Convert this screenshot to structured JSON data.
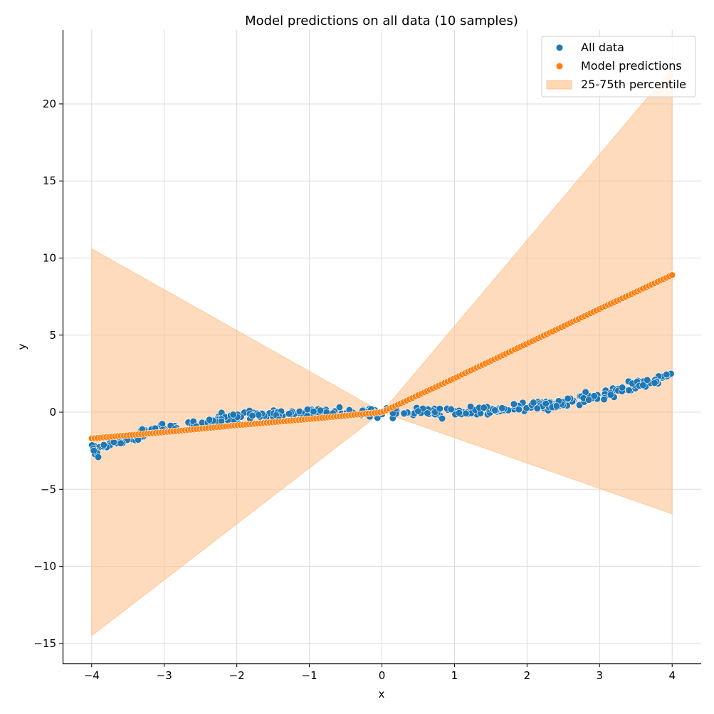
{
  "chart_data": {
    "type": "scatter",
    "title": "Model predictions on all data (10 samples)",
    "xlabel": "x",
    "ylabel": "y",
    "xlim": [
      -4.4,
      4.4
    ],
    "ylim": [
      -16.3,
      24.8
    ],
    "xticks": [
      -4,
      -3,
      -2,
      -1,
      0,
      1,
      2,
      3,
      4
    ],
    "xtick_labels": [
      "−4",
      "−3",
      "−2",
      "−1",
      "0",
      "1",
      "2",
      "3",
      "4"
    ],
    "yticks": [
      -15,
      -10,
      -5,
      0,
      5,
      10,
      15,
      20
    ],
    "ytick_labels": [
      "−15",
      "−10",
      "−5",
      "0",
      "5",
      "10",
      "15",
      "20"
    ],
    "grid": true,
    "legend_position": "top-right",
    "series": [
      {
        "name": "All data",
        "kind": "scatter",
        "color": "#1f77b4",
        "x_range": [
          -4,
          4
        ],
        "n_points": 400,
        "function": "y = 0.04*x^3 + noise(sd 0.15)",
        "keypoints": [
          [
            -4,
            -2.7
          ],
          [
            -3,
            -1.2
          ],
          [
            -2,
            -0.35
          ],
          [
            -1,
            0.0
          ],
          [
            0,
            0.0
          ],
          [
            1,
            0.05
          ],
          [
            2,
            0.35
          ],
          [
            3,
            1.15
          ],
          [
            4,
            2.7
          ]
        ]
      },
      {
        "name": "Model predictions",
        "kind": "scatter",
        "color": "#ff7f0e",
        "x_range": [
          -4,
          4
        ],
        "n_points": 200,
        "keypoints": [
          [
            -4,
            -1.7
          ],
          [
            -3,
            -1.3
          ],
          [
            -2,
            -0.85
          ],
          [
            -1,
            -0.45
          ],
          [
            0,
            0.0
          ],
          [
            1,
            2.2
          ],
          [
            2,
            4.45
          ],
          [
            3,
            6.7
          ],
          [
            4,
            8.9
          ]
        ]
      },
      {
        "name": "25-75th percentile",
        "kind": "area",
        "color": "#ffbe86",
        "x": [
          -4,
          0,
          4
        ],
        "upper": [
          10.6,
          0.0,
          22.3
        ],
        "lower": [
          -14.5,
          0.0,
          -6.6
        ]
      }
    ]
  }
}
